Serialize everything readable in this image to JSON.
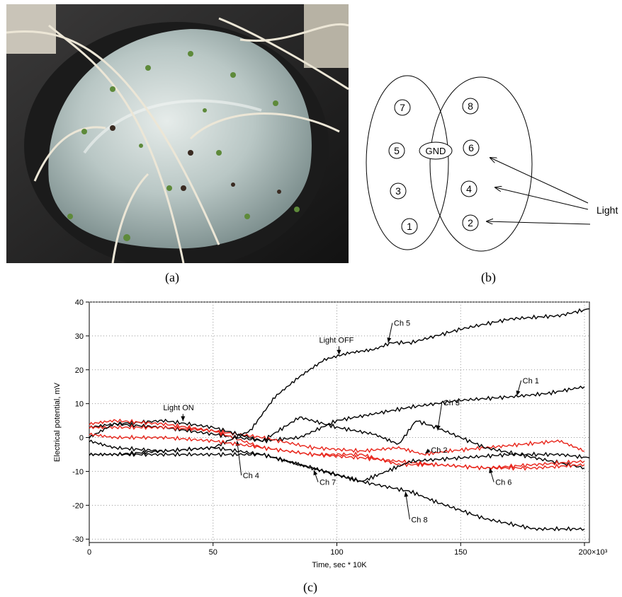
{
  "panel_a": {
    "caption": "(a)",
    "photo_description_icon": "seedlings-on-gel-photo"
  },
  "panel_b": {
    "caption": "(b)",
    "left_electrodes": [
      "7",
      "5",
      "3",
      "1"
    ],
    "right_electrodes": [
      "8",
      "6",
      "4",
      "2"
    ],
    "ground_label": "GND",
    "light_label": "Light"
  },
  "panel_c": {
    "caption": "(c)"
  },
  "chart_data": {
    "type": "line",
    "xlabel": "Time, sec * 10K",
    "ylabel": "Electrical potential, mV",
    "xlim": [
      0,
      202000
    ],
    "ylim": [
      -31,
      40
    ],
    "x_ticks": [
      "0",
      "50",
      "100",
      "150",
      "200×10³"
    ],
    "x_tick_values": [
      0,
      50000,
      100000,
      150000,
      200000
    ],
    "y_ticks": [
      -30,
      -20,
      -10,
      0,
      10,
      20,
      30,
      40
    ],
    "grid": true,
    "annotations": [
      {
        "text": "Light ON",
        "x": 37000,
        "y": 8
      },
      {
        "text": "Light OFF",
        "x": 100000,
        "y": 28
      }
    ],
    "series": [
      {
        "name": "Ch 1",
        "color": "#000000",
        "label_x": 175000,
        "label_y": 16,
        "x": [
          0,
          10000,
          30000,
          50000,
          70000,
          85000,
          100000,
          115000,
          130000,
          150000,
          170000,
          185000,
          200000
        ],
        "y": [
          3,
          4,
          3,
          1,
          -1,
          0,
          5,
          7,
          9,
          11,
          12,
          13,
          15
        ]
      },
      {
        "name": "Ch 2",
        "color": "#e8241a",
        "label_x": 138000,
        "label_y": -4.5,
        "x": [
          0,
          10000,
          30000,
          50000,
          70000,
          90000,
          110000,
          125000,
          135000,
          145000,
          160000,
          175000,
          190000,
          200000
        ],
        "y": [
          3,
          3,
          3,
          2,
          0,
          -3,
          -4,
          -3,
          -5,
          -4,
          -3,
          -2,
          -1,
          -4
        ]
      },
      {
        "name": "Ch 3",
        "color": "#000000",
        "label_x": 143000,
        "label_y": 9.5,
        "x": [
          0,
          10000,
          30000,
          50000,
          70000,
          85000,
          100000,
          115000,
          125000,
          132000,
          140000,
          160000,
          180000,
          200000
        ],
        "y": [
          0,
          4,
          5,
          3,
          -1,
          6,
          3,
          1,
          -2,
          5,
          3,
          -3,
          -6,
          -9
        ]
      },
      {
        "name": "Ch 4",
        "color": "#e8241a",
        "label_x": 62000,
        "label_y": -12,
        "x": [
          0,
          10000,
          30000,
          50000,
          70000,
          90000,
          110000,
          125000,
          140000,
          160000,
          180000,
          200000
        ],
        "y": [
          4,
          5,
          4,
          2,
          -3,
          -5,
          -5,
          -8,
          -8,
          -9,
          -8,
          -7
        ]
      },
      {
        "name": "Ch 5",
        "color": "#000000",
        "label_x": 123000,
        "label_y": 33,
        "x": [
          0,
          10000,
          30000,
          50000,
          65000,
          75000,
          85000,
          95000,
          105000,
          115000,
          122000,
          130000,
          150000,
          170000,
          190000,
          202000
        ],
        "y": [
          -5,
          -5,
          -4,
          -3,
          2,
          12,
          18,
          23,
          25,
          26,
          28,
          28,
          32,
          35,
          36,
          38
        ]
      },
      {
        "name": "Ch 6",
        "color": "#e8241a",
        "label_x": 164000,
        "label_y": -14,
        "x": [
          0,
          10000,
          30000,
          50000,
          70000,
          90000,
          110000,
          125000,
          140000,
          160000,
          180000,
          200000
        ],
        "y": [
          1,
          0,
          0,
          -1,
          -3,
          -5,
          -6,
          -7,
          -8,
          -9,
          -9,
          -8
        ]
      },
      {
        "name": "Ch 7",
        "color": "#000000",
        "label_x": 93000,
        "label_y": -14,
        "x": [
          0,
          10000,
          30000,
          50000,
          70000,
          85000,
          100000,
          110000,
          120000,
          130000,
          150000,
          170000,
          190000,
          202000
        ],
        "y": [
          -1,
          -3,
          -4,
          -3,
          -5,
          -8,
          -11,
          -13,
          -10,
          -7,
          -6,
          -5,
          -5,
          -6
        ]
      },
      {
        "name": "Ch 8",
        "color": "#000000",
        "label_x": 130000,
        "label_y": -25,
        "x": [
          0,
          10000,
          30000,
          50000,
          70000,
          90000,
          110000,
          130000,
          140000,
          160000,
          180000,
          200000
        ],
        "y": [
          -5,
          -5,
          -5,
          -5,
          -5,
          -9,
          -13,
          -16,
          -19,
          -24,
          -27,
          -27
        ]
      }
    ]
  }
}
